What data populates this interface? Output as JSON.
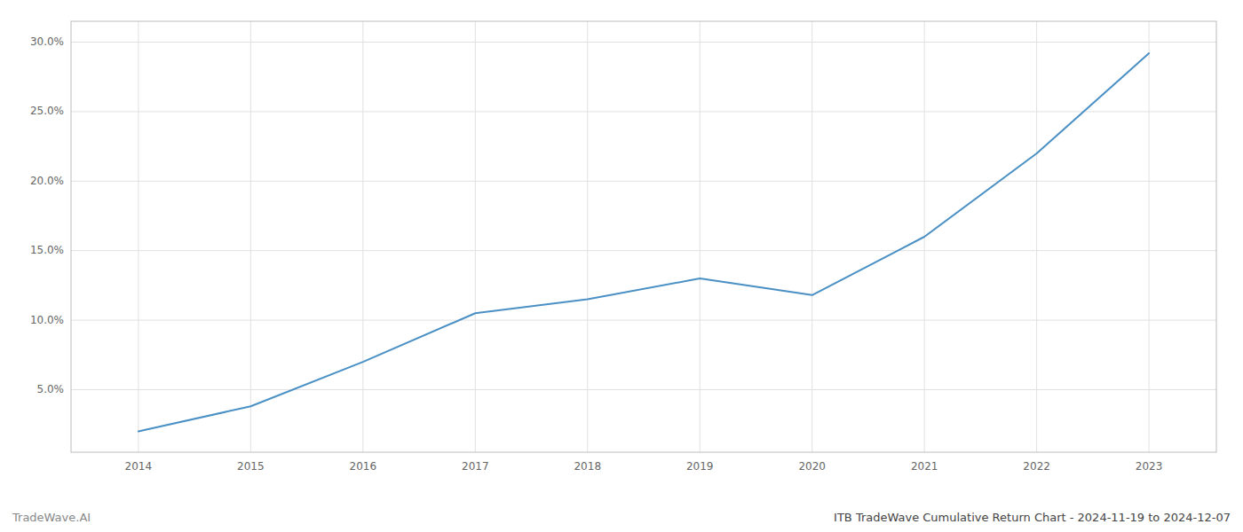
{
  "chart_data": {
    "type": "line",
    "x": [
      2014,
      2015,
      2016,
      2017,
      2018,
      2019,
      2020,
      2021,
      2022,
      2023
    ],
    "values": [
      0.02,
      0.038,
      0.07,
      0.105,
      0.115,
      0.13,
      0.118,
      0.16,
      0.22,
      0.292
    ],
    "color": "#4a90c4",
    "xlim": [
      2013.4,
      2023.6
    ],
    "xticks": [
      2014,
      2015,
      2016,
      2017,
      2018,
      2019,
      2020,
      2021,
      2022,
      2023
    ],
    "ylim": [
      0.005,
      0.315
    ],
    "yticks": [
      {
        "value": 0.05,
        "label": "5.0%"
      },
      {
        "value": 0.1,
        "label": "10.0%"
      },
      {
        "value": 0.15,
        "label": "15.0%"
      },
      {
        "value": 0.2,
        "label": "20.0%"
      },
      {
        "value": 0.25,
        "label": "25.0%"
      },
      {
        "value": 0.3,
        "label": "30.0%"
      }
    ],
    "grid": true,
    "annotations": [
      "TradeWave.AI",
      "ITB TradeWave Cumulative Return Chart - 2024-11-19 to 2024-12-07"
    ]
  }
}
